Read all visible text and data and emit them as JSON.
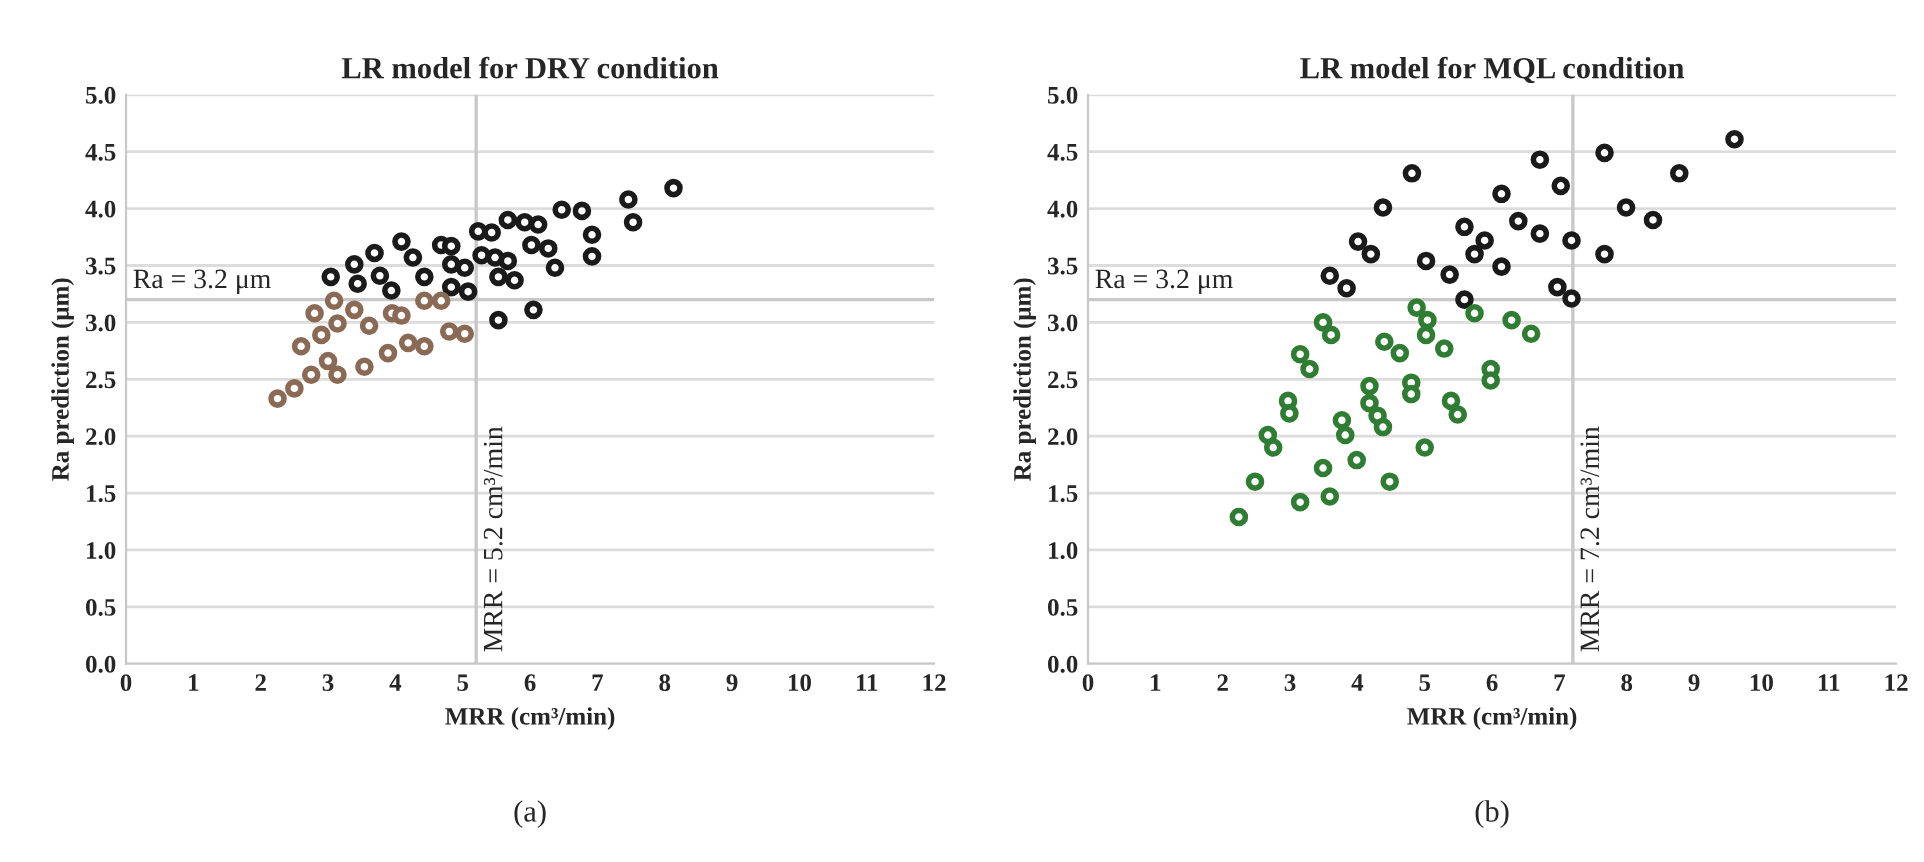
{
  "chart_data": [
    {
      "type": "scatter",
      "title": "LR model for DRY condition",
      "xlabel": "MRR (cm³/min)",
      "ylabel": "Ra prediction (μm)",
      "xlim": [
        0,
        12
      ],
      "xticks": [
        0,
        1,
        2,
        3,
        4,
        5,
        6,
        7,
        8,
        9,
        10,
        11,
        12
      ],
      "ylim": [
        0,
        5
      ],
      "yticks": [
        {
          "value": 0,
          "label": "0.0"
        },
        {
          "value": 0.5,
          "label": "0.5"
        },
        {
          "value": 1,
          "label": "1.0"
        },
        {
          "value": 1.5,
          "label": "1.5"
        },
        {
          "value": 2,
          "label": "2.0"
        },
        {
          "value": 2.5,
          "label": "2.5"
        },
        {
          "value": 3,
          "label": "3.0"
        },
        {
          "value": 3.5,
          "label": "3.5"
        },
        {
          "value": 4,
          "label": "4.0"
        },
        {
          "value": 4.5,
          "label": "4.5"
        },
        {
          "value": 5,
          "label": "5.0"
        }
      ],
      "grid": "y",
      "legend": false,
      "marker": "circle",
      "ref_lines": [
        {
          "axis": "y",
          "value": 3.2,
          "label": "Ra = 3.2 μm",
          "color": "#c8c8c8"
        },
        {
          "axis": "x",
          "value": 5.2,
          "label": "MRR = 5.2 cm³/min",
          "color": "#c8c8c8"
        }
      ],
      "annotations": [
        "(a)"
      ],
      "series": [
        {
          "color": "#1a1a1a",
          "x": [
            3.04,
            3.39,
            3.69,
            4.09,
            4.26,
            3.77,
            3.44,
            3.94,
            4.43,
            4.68,
            4.83,
            4.83,
            5.03,
            4.83,
            5.08,
            5.23,
            5.43,
            5.67,
            5.92,
            6.12,
            5.28,
            5.48,
            5.67,
            5.53,
            5.77,
            6.02,
            6.27,
            6.37,
            6.47,
            6.77,
            6.92,
            6.92,
            7.46,
            7.53,
            8.13,
            5.53,
            6.05
          ],
          "values": [
            3.4,
            3.51,
            3.61,
            3.71,
            3.57,
            3.41,
            3.34,
            3.28,
            3.4,
            3.68,
            3.67,
            3.51,
            3.48,
            3.31,
            3.27,
            3.8,
            3.79,
            3.9,
            3.88,
            3.86,
            3.59,
            3.57,
            3.54,
            3.4,
            3.37,
            3.68,
            3.65,
            3.48,
            3.99,
            3.98,
            3.77,
            3.58,
            4.08,
            3.88,
            4.18,
            3.02,
            3.11
          ]
        },
        {
          "color": "#8b6a55",
          "x": [
            3.09,
            2.8,
            3.39,
            2.9,
            3.14,
            3.61,
            2.6,
            3.95,
            4.09,
            4.43,
            4.68,
            2.25,
            2.5,
            2.75,
            3.0,
            3.14,
            3.54,
            3.89,
            4.19,
            4.43,
            4.8,
            5.03
          ],
          "values": [
            3.19,
            3.08,
            3.11,
            2.89,
            2.99,
            2.97,
            2.79,
            3.08,
            3.06,
            3.19,
            3.19,
            2.33,
            2.42,
            2.54,
            2.66,
            2.54,
            2.61,
            2.73,
            2.82,
            2.79,
            2.92,
            2.9
          ]
        }
      ]
    },
    {
      "type": "scatter",
      "title": "LR model for MQL condition",
      "xlabel": "MRR (cm³/min)",
      "ylabel": "Ra prediction (μm)",
      "xlim": [
        0,
        12
      ],
      "xticks": [
        0,
        1,
        2,
        3,
        4,
        5,
        6,
        7,
        8,
        9,
        10,
        11,
        12
      ],
      "ylim": [
        0,
        5
      ],
      "yticks": [
        {
          "value": 0,
          "label": "0.0"
        },
        {
          "value": 0.5,
          "label": "0.5"
        },
        {
          "value": 1,
          "label": "1.0"
        },
        {
          "value": 1.5,
          "label": "1.5"
        },
        {
          "value": 2,
          "label": "2.0"
        },
        {
          "value": 2.5,
          "label": "2.5"
        },
        {
          "value": 3,
          "label": "3.0"
        },
        {
          "value": 3.5,
          "label": "3.5"
        },
        {
          "value": 4,
          "label": "4.0"
        },
        {
          "value": 4.5,
          "label": "4.5"
        },
        {
          "value": 5,
          "label": "5.0"
        }
      ],
      "grid": "y",
      "legend": false,
      "marker": "circle",
      "ref_lines": [
        {
          "axis": "y",
          "value": 3.2,
          "label": "Ra = 3.2 μm",
          "color": "#c8c8c8"
        },
        {
          "axis": "x",
          "value": 7.2,
          "label": "MRR = 7.2 cm³/min",
          "color": "#c8c8c8"
        }
      ],
      "annotations": [
        "(b)"
      ],
      "series": [
        {
          "color": "#1a1a1a",
          "x": [
            3.59,
            3.84,
            4.01,
            4.2,
            4.38,
            4.81,
            5.02,
            5.37,
            5.59,
            5.89,
            5.74,
            5.59,
            6.14,
            6.39,
            6.14,
            6.71,
            7.02,
            6.71,
            7.18,
            6.97,
            7.18,
            7.67,
            7.67,
            7.99,
            8.39,
            8.78,
            9.6
          ],
          "values": [
            3.41,
            3.3,
            3.71,
            3.6,
            4.01,
            4.31,
            3.54,
            3.42,
            3.84,
            3.72,
            3.6,
            3.2,
            4.13,
            3.89,
            3.49,
            4.43,
            4.2,
            3.78,
            3.72,
            3.31,
            3.21,
            4.49,
            3.6,
            4.01,
            3.9,
            4.31,
            4.61
          ]
        },
        {
          "color": "#2e7d32",
          "x": [
            3.49,
            3.61,
            3.15,
            3.29,
            2.97,
            2.99,
            4.4,
            4.63,
            4.88,
            5.04,
            5.02,
            5.29,
            5.74,
            6.29,
            6.58,
            4.18,
            4.18,
            4.3,
            4.38,
            4.8,
            4.8,
            5.39,
            5.49,
            5.98,
            5.98,
            3.77,
            3.82,
            2.67,
            2.75,
            2.48,
            2.24,
            3.15,
            3.49,
            3.59,
            3.99,
            4.48,
            5.0
          ],
          "values": [
            3.0,
            2.89,
            2.72,
            2.59,
            2.31,
            2.2,
            2.83,
            2.73,
            3.13,
            3.02,
            2.89,
            2.77,
            3.08,
            3.02,
            2.9,
            2.44,
            2.29,
            2.18,
            2.08,
            2.47,
            2.37,
            2.31,
            2.19,
            2.59,
            2.49,
            2.14,
            2.01,
            2.01,
            1.9,
            1.6,
            1.29,
            1.42,
            1.72,
            1.47,
            1.79,
            1.6,
            1.9
          ]
        }
      ]
    }
  ]
}
